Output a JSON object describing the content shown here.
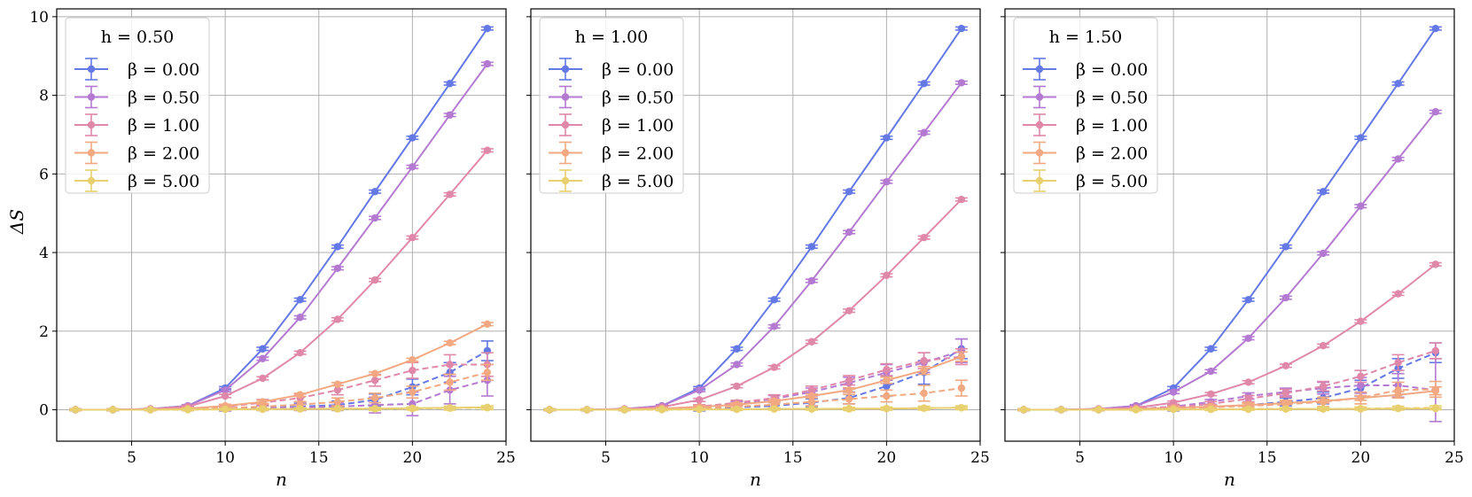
{
  "chart_data": [
    {
      "type": "line",
      "title": "h = 0.50",
      "xlabel": "n",
      "ylabel": "ΔS",
      "xlim": [
        1,
        25
      ],
      "ylim": [
        -0.8,
        10.2
      ],
      "xticks": [
        5,
        10,
        15,
        20,
        25
      ],
      "yticks": [
        0,
        2,
        4,
        6,
        8,
        10
      ],
      "grid": true,
      "legend_position": "top-left",
      "x": [
        2,
        4,
        6,
        8,
        10,
        12,
        14,
        16,
        18,
        20,
        22,
        24
      ],
      "series": [
        {
          "name": "β = 0.00",
          "color": "#6478e6",
          "style": "solid",
          "values": [
            0,
            0,
            0.02,
            0.1,
            0.55,
            1.55,
            2.8,
            4.15,
            5.55,
            6.92,
            8.3,
            9.7
          ],
          "errors": [
            0.02,
            0.02,
            0.02,
            0.03,
            0.04,
            0.04,
            0.04,
            0.04,
            0.04,
            0.04,
            0.04,
            0.04
          ]
        },
        {
          "name": "β = 0.50",
          "color": "#b47ad2",
          "style": "solid",
          "values": [
            0,
            0,
            0.02,
            0.1,
            0.5,
            1.3,
            2.35,
            3.6,
            4.88,
            6.18,
            7.5,
            8.8
          ],
          "errors": [
            0.02,
            0.02,
            0.02,
            0.03,
            0.04,
            0.04,
            0.04,
            0.04,
            0.04,
            0.04,
            0.04,
            0.04
          ]
        },
        {
          "name": "β = 1.00",
          "color": "#e088aa",
          "style": "solid",
          "values": [
            0,
            0,
            0.02,
            0.08,
            0.35,
            0.8,
            1.45,
            2.3,
            3.3,
            4.38,
            5.48,
            6.6
          ],
          "errors": [
            0.02,
            0.02,
            0.02,
            0.03,
            0.04,
            0.04,
            0.04,
            0.04,
            0.04,
            0.04,
            0.04,
            0.04
          ]
        },
        {
          "name": "β = 2.00",
          "color": "#f2a880",
          "style": "solid",
          "values": [
            0,
            0,
            0.01,
            0.03,
            0.1,
            0.2,
            0.38,
            0.65,
            0.92,
            1.27,
            1.7,
            2.18
          ],
          "errors": [
            0.02,
            0.02,
            0.02,
            0.03,
            0.04,
            0.04,
            0.04,
            0.04,
            0.04,
            0.04,
            0.04,
            0.04
          ]
        },
        {
          "name": "β = 5.00",
          "color": "#e8d070",
          "style": "solid",
          "values": [
            0,
            0,
            0,
            0.01,
            0.01,
            0.02,
            0.02,
            0.03,
            0.03,
            0.04,
            0.05,
            0.06
          ],
          "errors": [
            0.02,
            0.02,
            0.02,
            0.02,
            0.02,
            0.02,
            0.02,
            0.02,
            0.02,
            0.02,
            0.02,
            0.02
          ]
        },
        {
          "name": "",
          "color": "#6478e6",
          "style": "dashed",
          "values": [
            0,
            0,
            0,
            0.01,
            0.02,
            0.05,
            0.08,
            0.12,
            0.25,
            0.58,
            0.95,
            1.5
          ],
          "errors": [
            0.02,
            0.02,
            0.02,
            0.03,
            0.05,
            0.06,
            0.08,
            0.1,
            0.15,
            0.2,
            0.25,
            0.25
          ]
        },
        {
          "name": "",
          "color": "#b47ad2",
          "style": "dashed",
          "values": [
            0,
            0,
            0,
            0.01,
            0.02,
            0.04,
            0.06,
            0.08,
            0.12,
            0.15,
            0.5,
            0.75
          ],
          "errors": [
            0.02,
            0.02,
            0.02,
            0.03,
            0.05,
            0.06,
            0.08,
            0.1,
            0.2,
            0.3,
            0.35,
            0.4
          ]
        },
        {
          "name": "",
          "color": "#e088aa",
          "style": "dashed",
          "values": [
            0,
            0,
            0,
            0.02,
            0.08,
            0.18,
            0.3,
            0.5,
            0.75,
            1.0,
            1.15,
            1.15
          ],
          "errors": [
            0.02,
            0.02,
            0.02,
            0.03,
            0.05,
            0.08,
            0.1,
            0.12,
            0.15,
            0.2,
            0.25,
            0.3
          ]
        },
        {
          "name": "",
          "color": "#f2a880",
          "style": "dashed",
          "values": [
            0,
            0,
            0,
            0.01,
            0.04,
            0.08,
            0.13,
            0.2,
            0.3,
            0.45,
            0.7,
            0.95
          ],
          "errors": [
            0.02,
            0.02,
            0.02,
            0.03,
            0.05,
            0.06,
            0.08,
            0.1,
            0.12,
            0.15,
            0.2,
            0.2
          ]
        },
        {
          "name": "",
          "color": "#e8d070",
          "style": "dashed",
          "values": [
            0,
            0,
            0,
            0,
            0.01,
            0.01,
            0.02,
            0.02,
            0.02,
            0.03,
            0.04,
            0.05
          ],
          "errors": [
            0.02,
            0.02,
            0.02,
            0.02,
            0.02,
            0.03,
            0.03,
            0.03,
            0.04,
            0.04,
            0.05,
            0.05
          ]
        }
      ]
    },
    {
      "type": "line",
      "title": "h = 1.00",
      "xlabel": "n",
      "ylabel": "",
      "xlim": [
        1,
        25
      ],
      "ylim": [
        -0.8,
        10.2
      ],
      "xticks": [
        5,
        10,
        15,
        20,
        25
      ],
      "yticks": [
        0,
        2,
        4,
        6,
        8,
        10
      ],
      "grid": true,
      "legend_position": "top-left",
      "x": [
        2,
        4,
        6,
        8,
        10,
        12,
        14,
        16,
        18,
        20,
        22,
        24
      ],
      "series": [
        {
          "name": "β = 0.00",
          "color": "#6478e6",
          "style": "solid",
          "values": [
            0,
            0,
            0.02,
            0.1,
            0.55,
            1.55,
            2.8,
            4.15,
            5.55,
            6.92,
            8.3,
            9.7
          ],
          "errors": [
            0.02,
            0.02,
            0.02,
            0.03,
            0.04,
            0.04,
            0.04,
            0.04,
            0.04,
            0.04,
            0.04,
            0.04
          ]
        },
        {
          "name": "β = 0.50",
          "color": "#b47ad2",
          "style": "solid",
          "values": [
            0,
            0,
            0.02,
            0.1,
            0.5,
            1.15,
            2.12,
            3.28,
            4.52,
            5.8,
            7.05,
            8.32
          ],
          "errors": [
            0.02,
            0.02,
            0.02,
            0.03,
            0.04,
            0.04,
            0.04,
            0.04,
            0.04,
            0.04,
            0.04,
            0.04
          ]
        },
        {
          "name": "β = 1.00",
          "color": "#e088aa",
          "style": "solid",
          "values": [
            0,
            0,
            0.02,
            0.07,
            0.25,
            0.6,
            1.08,
            1.73,
            2.52,
            3.42,
            4.38,
            5.35
          ],
          "errors": [
            0.02,
            0.02,
            0.02,
            0.03,
            0.04,
            0.04,
            0.04,
            0.04,
            0.04,
            0.04,
            0.04,
            0.04
          ]
        },
        {
          "name": "β = 2.00",
          "color": "#f2a880",
          "style": "solid",
          "values": [
            0,
            0,
            0.01,
            0.03,
            0.07,
            0.13,
            0.22,
            0.35,
            0.5,
            0.75,
            1.0,
            1.35
          ],
          "errors": [
            0.02,
            0.02,
            0.02,
            0.03,
            0.04,
            0.04,
            0.04,
            0.05,
            0.06,
            0.08,
            0.1,
            0.12
          ]
        },
        {
          "name": "β = 5.00",
          "color": "#e8d070",
          "style": "solid",
          "values": [
            0,
            0,
            0,
            0.01,
            0.01,
            0.01,
            0.02,
            0.02,
            0.03,
            0.03,
            0.04,
            0.05
          ],
          "errors": [
            0.02,
            0.02,
            0.02,
            0.02,
            0.02,
            0.02,
            0.02,
            0.02,
            0.02,
            0.02,
            0.02,
            0.02
          ]
        },
        {
          "name": "",
          "color": "#6478e6",
          "style": "dashed",
          "values": [
            0,
            0,
            0,
            0.01,
            0.02,
            0.06,
            0.1,
            0.18,
            0.3,
            0.6,
            0.95,
            1.55
          ],
          "errors": [
            0.02,
            0.02,
            0.02,
            0.03,
            0.05,
            0.06,
            0.08,
            0.1,
            0.15,
            0.25,
            0.3,
            0.25
          ]
        },
        {
          "name": "",
          "color": "#b47ad2",
          "style": "dashed",
          "values": [
            0,
            0,
            0,
            0.02,
            0.06,
            0.15,
            0.28,
            0.45,
            0.68,
            0.95,
            1.2,
            1.5
          ],
          "errors": [
            0.02,
            0.02,
            0.02,
            0.03,
            0.05,
            0.06,
            0.08,
            0.1,
            0.15,
            0.2,
            0.25,
            0.3
          ]
        },
        {
          "name": "",
          "color": "#e088aa",
          "style": "dashed",
          "values": [
            0,
            0,
            0,
            0.02,
            0.08,
            0.18,
            0.3,
            0.5,
            0.75,
            1.02,
            1.25,
            1.35
          ],
          "errors": [
            0.02,
            0.02,
            0.02,
            0.03,
            0.05,
            0.06,
            0.08,
            0.1,
            0.12,
            0.15,
            0.2,
            0.2
          ]
        },
        {
          "name": "",
          "color": "#f2a880",
          "style": "dashed",
          "values": [
            0,
            0,
            0,
            0.01,
            0.04,
            0.08,
            0.13,
            0.2,
            0.27,
            0.35,
            0.42,
            0.55
          ],
          "errors": [
            0.02,
            0.02,
            0.02,
            0.03,
            0.05,
            0.06,
            0.08,
            0.1,
            0.12,
            0.15,
            0.2,
            0.2
          ]
        },
        {
          "name": "",
          "color": "#e8d070",
          "style": "dashed",
          "values": [
            0,
            0,
            0,
            0,
            0.01,
            0.01,
            0.02,
            0.02,
            0.02,
            0.03,
            0.04,
            0.05
          ],
          "errors": [
            0.02,
            0.02,
            0.02,
            0.02,
            0.02,
            0.03,
            0.03,
            0.03,
            0.04,
            0.04,
            0.05,
            0.05
          ]
        }
      ]
    },
    {
      "type": "line",
      "title": "h = 1.50",
      "xlabel": "n",
      "ylabel": "",
      "xlim": [
        1,
        25
      ],
      "ylim": [
        -0.8,
        10.2
      ],
      "xticks": [
        5,
        10,
        15,
        20,
        25
      ],
      "yticks": [
        0,
        2,
        4,
        6,
        8,
        10
      ],
      "grid": true,
      "legend_position": "top-left",
      "x": [
        2,
        4,
        6,
        8,
        10,
        12,
        14,
        16,
        18,
        20,
        22,
        24
      ],
      "series": [
        {
          "name": "β = 0.00",
          "color": "#6478e6",
          "style": "solid",
          "values": [
            0,
            0,
            0.02,
            0.1,
            0.55,
            1.55,
            2.8,
            4.15,
            5.55,
            6.92,
            8.3,
            9.7
          ],
          "errors": [
            0.02,
            0.02,
            0.02,
            0.03,
            0.04,
            0.04,
            0.04,
            0.04,
            0.04,
            0.04,
            0.04,
            0.04
          ]
        },
        {
          "name": "β = 0.50",
          "color": "#b47ad2",
          "style": "solid",
          "values": [
            0,
            0,
            0.02,
            0.1,
            0.45,
            0.98,
            1.82,
            2.85,
            3.98,
            5.18,
            6.38,
            7.58
          ],
          "errors": [
            0.02,
            0.02,
            0.02,
            0.03,
            0.04,
            0.04,
            0.04,
            0.04,
            0.04,
            0.04,
            0.04,
            0.04
          ]
        },
        {
          "name": "β = 1.00",
          "color": "#e088aa",
          "style": "solid",
          "values": [
            0,
            0,
            0.02,
            0.05,
            0.18,
            0.4,
            0.7,
            1.12,
            1.63,
            2.25,
            2.95,
            3.7
          ],
          "errors": [
            0.02,
            0.02,
            0.02,
            0.03,
            0.04,
            0.04,
            0.04,
            0.04,
            0.04,
            0.04,
            0.04,
            0.04
          ]
        },
        {
          "name": "β = 2.00",
          "color": "#f2a880",
          "style": "solid",
          "values": [
            0,
            0,
            0.01,
            0.02,
            0.05,
            0.08,
            0.12,
            0.17,
            0.22,
            0.3,
            0.38,
            0.48
          ],
          "errors": [
            0.02,
            0.02,
            0.02,
            0.03,
            0.04,
            0.04,
            0.04,
            0.04,
            0.05,
            0.06,
            0.08,
            0.1
          ]
        },
        {
          "name": "β = 5.00",
          "color": "#e8d070",
          "style": "solid",
          "values": [
            0,
            0,
            0,
            0,
            0.01,
            0.01,
            0.01,
            0.02,
            0.02,
            0.02,
            0.03,
            0.03
          ],
          "errors": [
            0.02,
            0.02,
            0.02,
            0.02,
            0.02,
            0.02,
            0.02,
            0.02,
            0.02,
            0.02,
            0.02,
            0.02
          ]
        },
        {
          "name": "",
          "color": "#6478e6",
          "style": "dashed",
          "values": [
            0,
            0,
            0,
            0.01,
            0.02,
            0.06,
            0.12,
            0.2,
            0.3,
            0.55,
            1.05,
            1.45
          ],
          "errors": [
            0.02,
            0.02,
            0.02,
            0.03,
            0.05,
            0.06,
            0.08,
            0.1,
            0.15,
            0.2,
            0.25,
            0.25
          ]
        },
        {
          "name": "",
          "color": "#b47ad2",
          "style": "dashed",
          "values": [
            0,
            0,
            0,
            0.02,
            0.08,
            0.2,
            0.35,
            0.45,
            0.55,
            0.62,
            0.62,
            0.5
          ],
          "errors": [
            0.02,
            0.02,
            0.02,
            0.03,
            0.05,
            0.06,
            0.08,
            0.1,
            0.15,
            0.2,
            0.3,
            0.8
          ]
        },
        {
          "name": "",
          "color": "#e088aa",
          "style": "dashed",
          "values": [
            0,
            0,
            0,
            0.02,
            0.06,
            0.15,
            0.28,
            0.42,
            0.6,
            0.85,
            1.2,
            1.5
          ],
          "errors": [
            0.02,
            0.02,
            0.02,
            0.03,
            0.05,
            0.06,
            0.08,
            0.1,
            0.12,
            0.15,
            0.2,
            0.2
          ]
        },
        {
          "name": "",
          "color": "#f2a880",
          "style": "dashed",
          "values": [
            0,
            0,
            0,
            0.01,
            0.03,
            0.06,
            0.1,
            0.14,
            0.2,
            0.3,
            0.5,
            0.52
          ],
          "errors": [
            0.02,
            0.02,
            0.02,
            0.03,
            0.05,
            0.06,
            0.08,
            0.1,
            0.12,
            0.15,
            0.2,
            0.2
          ]
        },
        {
          "name": "",
          "color": "#e8d070",
          "style": "dashed",
          "values": [
            0,
            0,
            0,
            0,
            0.01,
            0.01,
            0.02,
            0.02,
            0.02,
            0.03,
            0.04,
            0.05
          ],
          "errors": [
            0.02,
            0.02,
            0.02,
            0.02,
            0.02,
            0.03,
            0.03,
            0.03,
            0.04,
            0.04,
            0.05,
            0.05
          ]
        }
      ]
    }
  ]
}
